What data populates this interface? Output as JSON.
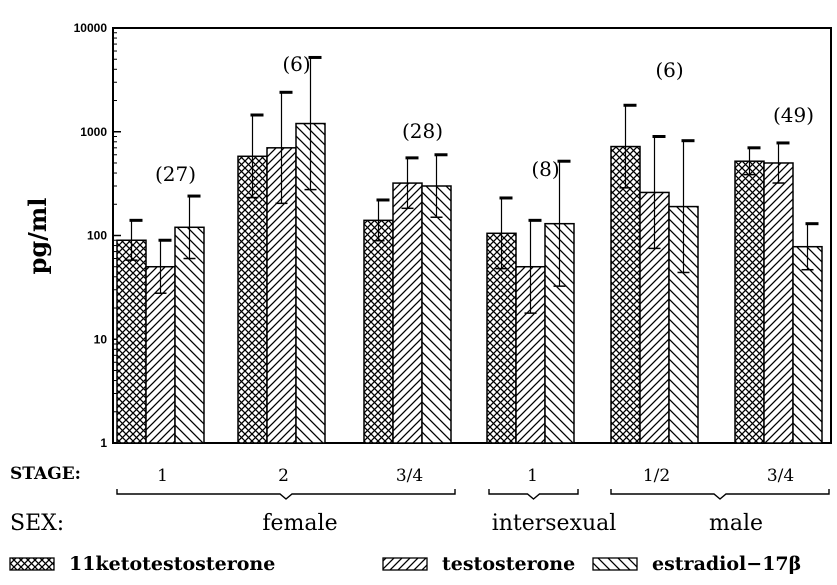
{
  "chart_data": {
    "type": "bar",
    "scale": "log",
    "ylabel": "pg/ml",
    "ylim": [
      1,
      10000
    ],
    "ytick_labels": [
      "1",
      "10",
      "100",
      "1000",
      "10000"
    ],
    "stage_title": "STAGE:",
    "sex_title": "SEX:",
    "groups": [
      {
        "stage": "1",
        "sex": "female",
        "n_label": "(27)"
      },
      {
        "stage": "2",
        "sex": "female",
        "n_label": "(6)"
      },
      {
        "stage": "3/4",
        "sex": "female",
        "n_label": "(28)"
      },
      {
        "stage": "1",
        "sex": "intersexual",
        "n_label": "(8)"
      },
      {
        "stage": "1/2",
        "sex": "male",
        "n_label": "(6)"
      },
      {
        "stage": "3/4",
        "sex": "male",
        "n_label": "(49)"
      }
    ],
    "sexes": [
      "female",
      "intersexual",
      "male"
    ],
    "series": [
      {
        "name": "11ketotestosterone",
        "pattern": "crosshatch",
        "values": [
          90,
          580,
          140,
          105,
          720,
          520
        ],
        "error_upper": [
          140,
          1450,
          220,
          230,
          1800,
          700
        ]
      },
      {
        "name": "testosterone",
        "pattern": "diagonal-forward",
        "values": [
          50,
          700,
          320,
          50,
          260,
          500
        ],
        "error_upper": [
          90,
          2400,
          560,
          140,
          900,
          780
        ]
      },
      {
        "name": "estradiol−17β",
        "pattern": "diagonal-backward",
        "values": [
          120,
          1200,
          300,
          130,
          190,
          78
        ],
        "error_upper": [
          240,
          5200,
          600,
          520,
          820,
          130
        ]
      }
    ]
  }
}
